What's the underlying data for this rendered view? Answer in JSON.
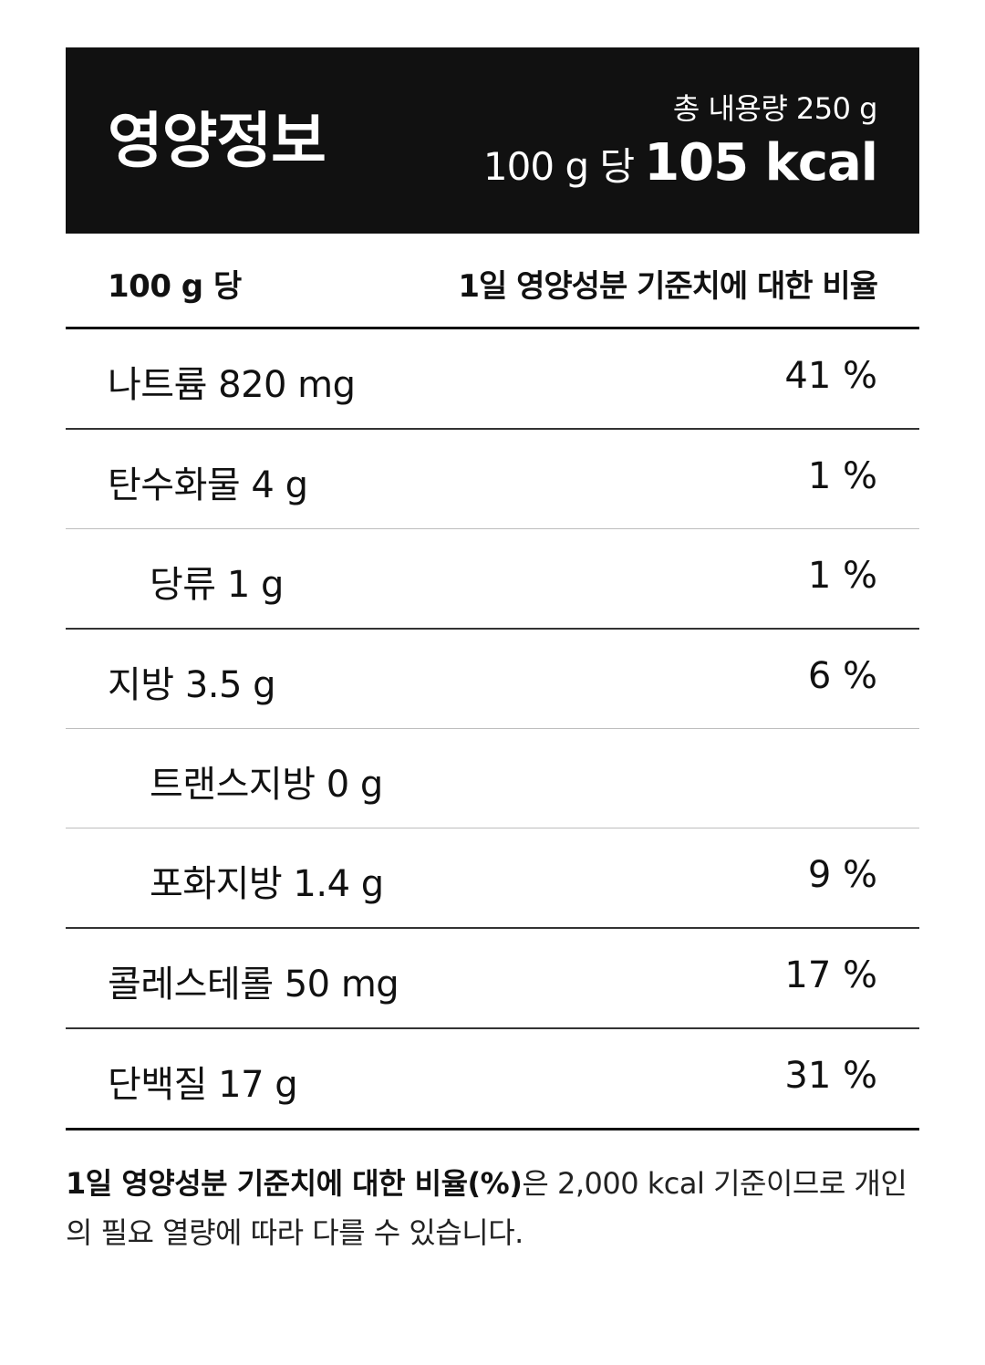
{
  "header": {
    "title": "영양정보",
    "total_amount": "총 내용량 250 g",
    "per_label": "100 g 당",
    "kcal": "105 kcal"
  },
  "columns": {
    "left": "100 g 당",
    "right": "1일 영양성분 기준치에 대한 비율"
  },
  "rows": [
    {
      "name": "나트륨 820 mg",
      "pct": "41 %"
    },
    {
      "name": "탄수화물 4 g",
      "pct": "1 %"
    },
    {
      "name": "당류 1 g",
      "pct": "1 %"
    },
    {
      "name": "지방 3.5 g",
      "pct": "6 %"
    },
    {
      "name": "트랜스지방 0 g",
      "pct": ""
    },
    {
      "name": "포화지방 1.4 g",
      "pct": "9 %"
    },
    {
      "name": "콜레스테롤 50 mg",
      "pct": "17 %"
    },
    {
      "name": "단백질 17 g",
      "pct": "31 %"
    }
  ],
  "footnote": {
    "bold": "1일 영양성분 기준치에 대한 비율(%)",
    "rest": "은 2,000 kcal 기준이므로 개인의 필요 열량에 따라 다를 수 있습니다."
  }
}
